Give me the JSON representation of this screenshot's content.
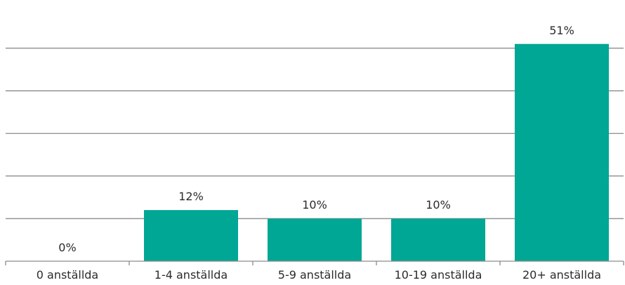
{
  "chart_data": {
    "type": "bar",
    "categories": [
      "0 anställda",
      "1-4 anställda",
      "5-9 anställda",
      "10-19 anställda",
      "20+ anställda"
    ],
    "values": [
      0,
      12,
      10,
      10,
      51
    ],
    "value_labels": [
      "0%",
      "12%",
      "10%",
      "10%",
      "51%"
    ],
    "unit": "%",
    "title": "",
    "xlabel": "",
    "ylabel": "",
    "ylim": [
      0,
      60
    ],
    "gridlines": [
      10,
      20,
      30,
      40,
      50
    ],
    "grid": true,
    "legend": "none",
    "bar_color": "#00a794"
  }
}
